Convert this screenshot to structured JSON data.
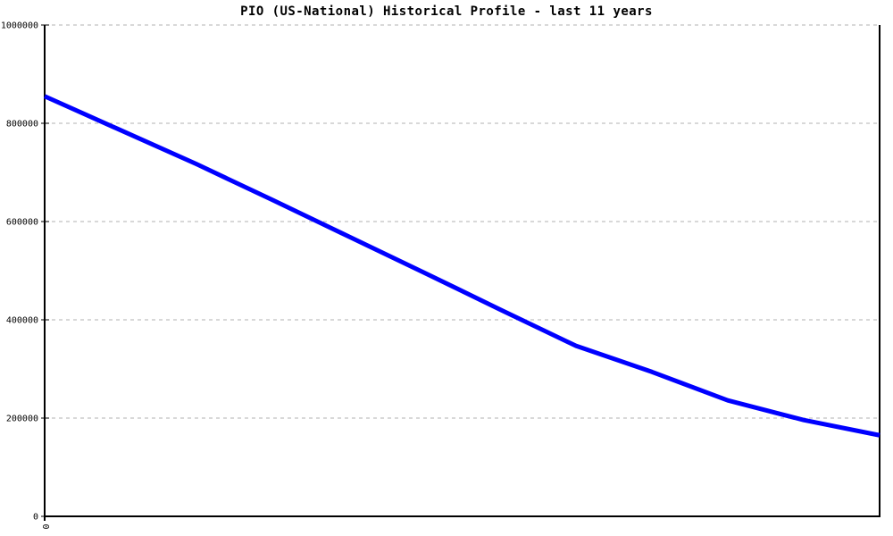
{
  "page": {
    "background": "#ffffff"
  },
  "chart_data": {
    "type": "line",
    "title": "PIO (US-National) Historical Profile - last 11 years",
    "xlabel": "",
    "ylabel": "",
    "x": [
      0,
      1,
      2,
      3,
      4,
      5,
      6,
      7,
      8,
      9,
      10,
      11
    ],
    "series": [
      {
        "name": "PIO (US-National)",
        "color": "#0000ff",
        "line_width": 5,
        "values": [
          855000,
          786000,
          717000,
          644000,
          570000,
          496000,
          421000,
          347000,
          294000,
          236000,
          196000,
          165000
        ]
      }
    ],
    "xlim": [
      0,
      11
    ],
    "ylim": [
      0,
      1000000
    ],
    "y_ticks": [
      0,
      200000,
      400000,
      600000,
      800000,
      1000000
    ],
    "y_tick_labels": [
      "0",
      "200000",
      "400000",
      "600000",
      "800000",
      "1000000"
    ],
    "x_ticks": [
      0
    ],
    "x_tick_labels": [
      "0"
    ],
    "x_tick_label_rotation_deg": 90,
    "grid": true,
    "grid_style": "dashed",
    "legend_position": "none",
    "colors": {
      "grid": "#b0b0b0",
      "axis": "#000000",
      "tick_label": "#000000",
      "title": "#000000",
      "background": "#ffffff"
    }
  }
}
